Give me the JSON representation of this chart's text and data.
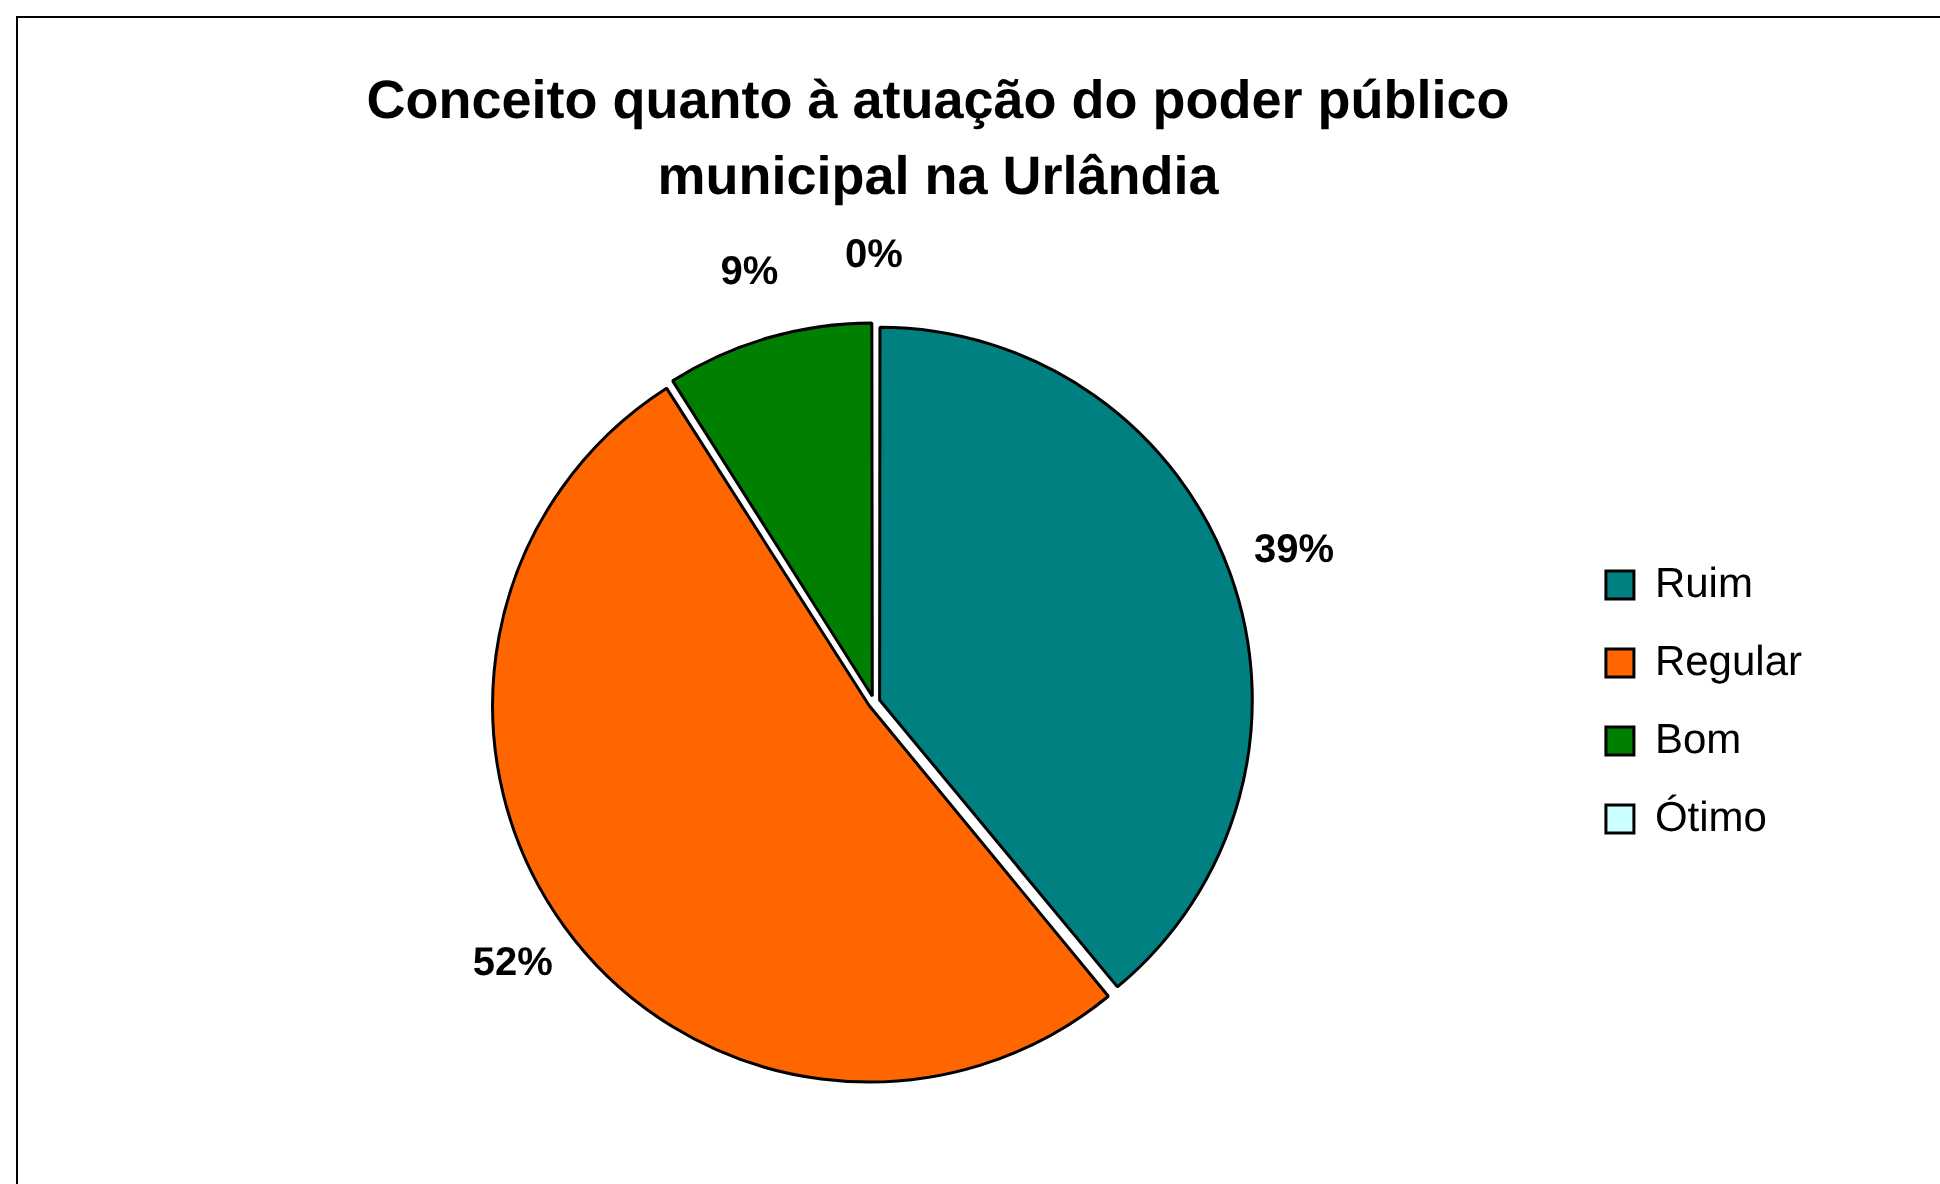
{
  "chart_data": {
    "type": "pie",
    "title": "Conceito quanto à atuação do poder público municipal na Urlândia",
    "categories": [
      "Ruim",
      "Regular",
      "Bom",
      "Ótimo"
    ],
    "values": [
      39,
      52,
      9,
      0
    ],
    "colors": [
      "#008080",
      "#ff6600",
      "#008000",
      "#ccffff"
    ],
    "value_labels": [
      "39%",
      "52%",
      "9%",
      "0%"
    ],
    "legend": "right"
  }
}
